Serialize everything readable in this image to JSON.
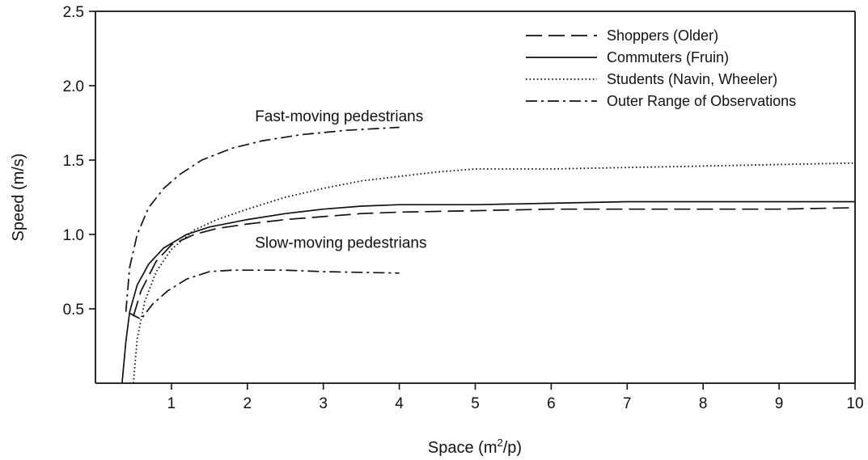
{
  "chart_data": {
    "type": "line",
    "xlabel_main": "Space (m",
    "xlabel_sup": "2",
    "xlabel_end": "/p)",
    "ylabel": "Speed (m/s)",
    "xlim": [
      0,
      10
    ],
    "ylim": [
      0,
      2.5
    ],
    "x_ticks": [
      1,
      2,
      3,
      4,
      5,
      6,
      7,
      8,
      9,
      10
    ],
    "x_tick_labels": [
      "1",
      "2",
      "3",
      "4",
      "5",
      "6",
      "7",
      "8",
      "9",
      "10"
    ],
    "y_ticks": [
      0.5,
      1.0,
      1.5,
      2.0,
      2.5
    ],
    "y_tick_labels": [
      "0.5",
      "1.0",
      "1.5",
      "2.0",
      "2.5"
    ],
    "grid": false,
    "legend_position": "top-right",
    "series": [
      {
        "name": "Shoppers (Older)",
        "style": "dashed",
        "points": [
          [
            0.5,
            0.45
          ],
          [
            0.6,
            0.62
          ],
          [
            0.8,
            0.82
          ],
          [
            1.0,
            0.93
          ],
          [
            1.3,
            1.0
          ],
          [
            1.6,
            1.04
          ],
          [
            2.0,
            1.07
          ],
          [
            2.5,
            1.1
          ],
          [
            3.0,
            1.12
          ],
          [
            3.5,
            1.14
          ],
          [
            4.0,
            1.15
          ],
          [
            5.0,
            1.16
          ],
          [
            6.0,
            1.17
          ],
          [
            7.0,
            1.17
          ],
          [
            8.0,
            1.17
          ],
          [
            9.0,
            1.17
          ],
          [
            10.0,
            1.18
          ]
        ]
      },
      {
        "name": "Commuters (Fruin)",
        "style": "solid",
        "points": [
          [
            0.35,
            0.0
          ],
          [
            0.4,
            0.28
          ],
          [
            0.45,
            0.48
          ],
          [
            0.55,
            0.66
          ],
          [
            0.7,
            0.8
          ],
          [
            0.9,
            0.91
          ],
          [
            1.2,
            1.0
          ],
          [
            1.5,
            1.05
          ],
          [
            2.0,
            1.1
          ],
          [
            2.5,
            1.14
          ],
          [
            3.0,
            1.17
          ],
          [
            3.5,
            1.19
          ],
          [
            4.0,
            1.2
          ],
          [
            5.0,
            1.2
          ],
          [
            6.0,
            1.21
          ],
          [
            7.0,
            1.22
          ],
          [
            8.0,
            1.22
          ],
          [
            9.0,
            1.22
          ],
          [
            10.0,
            1.22
          ]
        ]
      },
      {
        "name": "Students (Navin, Wheeler)",
        "style": "dotted",
        "points": [
          [
            0.5,
            0.0
          ],
          [
            0.55,
            0.3
          ],
          [
            0.65,
            0.55
          ],
          [
            0.8,
            0.75
          ],
          [
            1.0,
            0.9
          ],
          [
            1.3,
            1.03
          ],
          [
            1.6,
            1.1
          ],
          [
            2.0,
            1.17
          ],
          [
            2.5,
            1.25
          ],
          [
            3.0,
            1.31
          ],
          [
            3.5,
            1.36
          ],
          [
            4.0,
            1.39
          ],
          [
            4.5,
            1.42
          ],
          [
            5.0,
            1.44
          ],
          [
            5.5,
            1.44
          ],
          [
            6.0,
            1.44
          ],
          [
            7.0,
            1.45
          ],
          [
            8.0,
            1.46
          ],
          [
            9.0,
            1.47
          ],
          [
            10.0,
            1.48
          ]
        ]
      },
      {
        "name": "Outer Range of Observations",
        "style": "dash-dot",
        "points": [
          [
            0.4,
            0.48
          ],
          [
            0.45,
            0.78
          ],
          [
            0.55,
            1.0
          ],
          [
            0.7,
            1.18
          ],
          [
            0.9,
            1.31
          ],
          [
            1.1,
            1.4
          ],
          [
            1.4,
            1.5
          ],
          [
            1.8,
            1.58
          ],
          [
            2.2,
            1.63
          ],
          [
            2.7,
            1.67
          ],
          [
            3.3,
            1.7
          ],
          [
            4.0,
            1.72
          ]
        ]
      },
      {
        "name": "",
        "style": "dash-dot",
        "points": [
          [
            0.45,
            0.47
          ],
          [
            0.6,
            0.43
          ],
          [
            0.75,
            0.53
          ],
          [
            0.95,
            0.62
          ],
          [
            1.2,
            0.7
          ],
          [
            1.5,
            0.75
          ],
          [
            1.8,
            0.76
          ],
          [
            2.5,
            0.76
          ],
          [
            3.0,
            0.75
          ],
          [
            4.0,
            0.74
          ]
        ]
      }
    ],
    "annotations": [
      {
        "text": "Fast-moving pedestrians",
        "x": 2.1,
        "y": 1.76
      },
      {
        "text": "Slow-moving pedestrians",
        "x": 2.1,
        "y": 0.91
      }
    ]
  }
}
